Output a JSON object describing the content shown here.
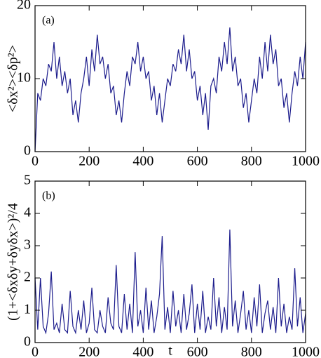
{
  "chart_data": [
    {
      "type": "line",
      "annotation": "(a)",
      "ylabel": "<δx²><δp²>",
      "x": [
        0,
        10,
        20,
        30,
        40,
        50,
        60,
        70,
        80,
        90,
        100,
        110,
        120,
        130,
        140,
        150,
        160,
        170,
        180,
        190,
        200,
        210,
        220,
        230,
        240,
        250,
        260,
        270,
        280,
        290,
        300,
        310,
        320,
        330,
        340,
        350,
        360,
        370,
        380,
        390,
        400,
        410,
        420,
        430,
        440,
        450,
        460,
        470,
        480,
        490,
        500,
        510,
        520,
        530,
        540,
        550,
        560,
        570,
        580,
        590,
        600,
        610,
        620,
        630,
        640,
        650,
        660,
        670,
        680,
        690,
        700,
        710,
        720,
        730,
        740,
        750,
        760,
        770,
        780,
        790,
        800,
        810,
        820,
        830,
        840,
        850,
        860,
        870,
        880,
        890,
        900,
        910,
        920,
        930,
        940,
        950,
        960,
        970,
        980,
        990,
        1000
      ],
      "series": [
        {
          "color": "#1c1c8c",
          "values": [
            0,
            8,
            7,
            10,
            9,
            12,
            11,
            15,
            10,
            13,
            9,
            11,
            8,
            10,
            5,
            7,
            4,
            8,
            10,
            13,
            9,
            14,
            11,
            16,
            12,
            13,
            10,
            12,
            8,
            9,
            5,
            7,
            4,
            8,
            11,
            9,
            13,
            12,
            15,
            11,
            13,
            10,
            11,
            7,
            9,
            5,
            8,
            4,
            7,
            10,
            9,
            12,
            11,
            14,
            12,
            16,
            11,
            14,
            10,
            11,
            7,
            9,
            5,
            8,
            3,
            9,
            10,
            8,
            13,
            11,
            15,
            12,
            17,
            11,
            13,
            9,
            10,
            6,
            8,
            4,
            7,
            10,
            8,
            13,
            10,
            15,
            11,
            16,
            12,
            14,
            9,
            10,
            6,
            8,
            4,
            8,
            11,
            9,
            13,
            10,
            15
          ]
        }
      ],
      "xlim": [
        0,
        1000
      ],
      "xticks": [
        0,
        200,
        400,
        600,
        800,
        1000
      ],
      "ylim": [
        0,
        20
      ],
      "yticks": [
        0,
        10,
        20
      ]
    },
    {
      "type": "line",
      "annotation": "(b)",
      "ylabel": "(1+<δxδy+δyδx>)²/4",
      "xlabel": "t",
      "x": [
        0,
        10,
        20,
        30,
        40,
        50,
        60,
        70,
        80,
        90,
        100,
        110,
        120,
        130,
        140,
        150,
        160,
        170,
        180,
        190,
        200,
        210,
        220,
        230,
        240,
        250,
        260,
        270,
        280,
        290,
        300,
        310,
        320,
        330,
        340,
        350,
        360,
        370,
        380,
        390,
        400,
        410,
        420,
        430,
        440,
        450,
        460,
        470,
        480,
        490,
        500,
        510,
        520,
        530,
        540,
        550,
        560,
        570,
        580,
        590,
        600,
        610,
        620,
        630,
        640,
        650,
        660,
        670,
        680,
        690,
        700,
        710,
        720,
        730,
        740,
        750,
        760,
        770,
        780,
        790,
        800,
        810,
        820,
        830,
        840,
        850,
        860,
        870,
        880,
        890,
        900,
        910,
        920,
        930,
        940,
        950,
        960,
        970,
        980,
        990,
        1000
      ],
      "series": [
        {
          "color": "#1c1c8c",
          "values": [
            2.0,
            0.4,
            2.0,
            0.5,
            0.3,
            0.9,
            2.2,
            0.4,
            0.6,
            0.3,
            1.2,
            0.4,
            0.3,
            1.6,
            0.5,
            0.3,
            1.0,
            0.4,
            1.3,
            0.3,
            0.6,
            1.7,
            0.4,
            0.3,
            1.0,
            0.5,
            0.3,
            1.4,
            0.6,
            0.4,
            2.4,
            0.5,
            0.3,
            1.5,
            0.4,
            1.2,
            0.3,
            2.8,
            0.5,
            1.0,
            0.3,
            1.7,
            0.4,
            1.3,
            0.3,
            0.8,
            1.5,
            3.3,
            0.4,
            1.1,
            0.3,
            1.6,
            0.5,
            1.0,
            0.3,
            1.5,
            0.4,
            0.9,
            1.8,
            0.3,
            1.2,
            0.4,
            1.6,
            0.3,
            0.8,
            0.4,
            2.0,
            0.5,
            1.4,
            0.3,
            1.1,
            0.4,
            3.5,
            0.5,
            1.3,
            0.3,
            0.9,
            1.6,
            0.4,
            1.0,
            0.3,
            1.4,
            0.5,
            1.8,
            0.3,
            0.9,
            1.3,
            0.4,
            1.1,
            0.3,
            2.0,
            0.5,
            1.2,
            0.3,
            0.8,
            0.4,
            2.3,
            0.5,
            1.4,
            0.3,
            0.9
          ]
        }
      ],
      "xlim": [
        0,
        1000
      ],
      "xticks": [
        0,
        200,
        400,
        600,
        800,
        1000
      ],
      "ylim": [
        0,
        5
      ],
      "yticks": [
        0,
        1,
        2,
        3,
        4,
        5
      ]
    }
  ]
}
